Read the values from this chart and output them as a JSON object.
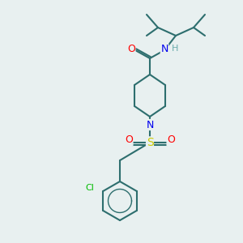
{
  "background_color": "#e8f0f0",
  "bond_color": "#2d6e6e",
  "atom_colors": {
    "O": "#ff0000",
    "N": "#0000ee",
    "S": "#cccc00",
    "Cl": "#00bb00",
    "H": "#6aacac",
    "C": "#2d6e6e"
  },
  "figsize": [
    3.0,
    3.0
  ],
  "dpi": 100,
  "lw": 1.5
}
